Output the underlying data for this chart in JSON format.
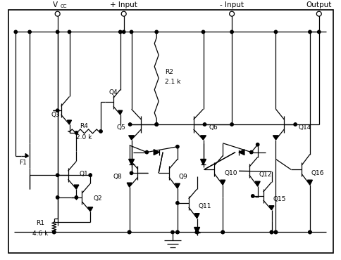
{
  "bg": "#ffffff",
  "lc": "#000000",
  "labels": {
    "vcc": "V",
    "vcc_sub": "CC",
    "plus_input": "+ Input",
    "minus_input": "- Input",
    "output": "Output",
    "R1": "R1",
    "R1_val": "4.6 k",
    "R2": "R2",
    "R2_val": "2.1 k",
    "R4": "R4",
    "R4_val": "2.0 k",
    "F1": "F1",
    "Q3": "Q3",
    "Q4": "Q4",
    "Q5": "Q5",
    "Q6": "Q6",
    "Q1": "Q1",
    "Q2": "Q2",
    "Q8": "Q8",
    "Q9": "Q9",
    "Q10": "Q10",
    "Q11": "Q11",
    "Q12": "Q12",
    "Q14": "Q14",
    "Q15": "Q15",
    "Q16": "Q16"
  }
}
